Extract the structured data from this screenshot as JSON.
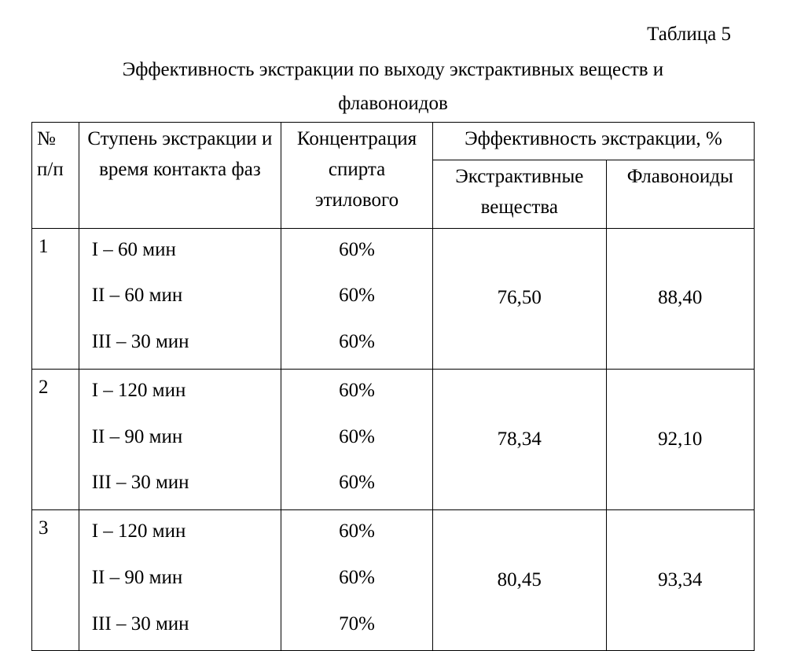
{
  "table_label": "Таблица 5",
  "caption_line1": "Эффективность экстракции по выходу экстрактивных веществ и",
  "caption_line2": "флавоноидов",
  "headers": {
    "num": "№ п/п",
    "stage": "Ступень экстракции и время контакта фаз",
    "conc": "Концентрация спирта этилового",
    "eff_group": "Эффективность экстракции, %",
    "extractives": "Экстрактивные вещества",
    "flavonoids": "Флавоноиды"
  },
  "rows": [
    {
      "num": "1",
      "stages": [
        "I – 60 мин",
        "II – 60 мин",
        "III – 30 мин"
      ],
      "concs": [
        "60%",
        "60%",
        "60%"
      ],
      "extractives": "76,50",
      "flavonoids": "88,40"
    },
    {
      "num": "2",
      "stages": [
        "I – 120 мин",
        "II – 90 мин",
        "III – 30 мин"
      ],
      "concs": [
        "60%",
        "60%",
        "60%"
      ],
      "extractives": "78,34",
      "flavonoids": "92,10"
    },
    {
      "num": "3",
      "stages": [
        "I – 120 мин",
        "II – 90 мин",
        "III – 30 мин"
      ],
      "concs": [
        "60%",
        "60%",
        "70%"
      ],
      "extractives": "80,45",
      "flavonoids": "93,34"
    }
  ]
}
